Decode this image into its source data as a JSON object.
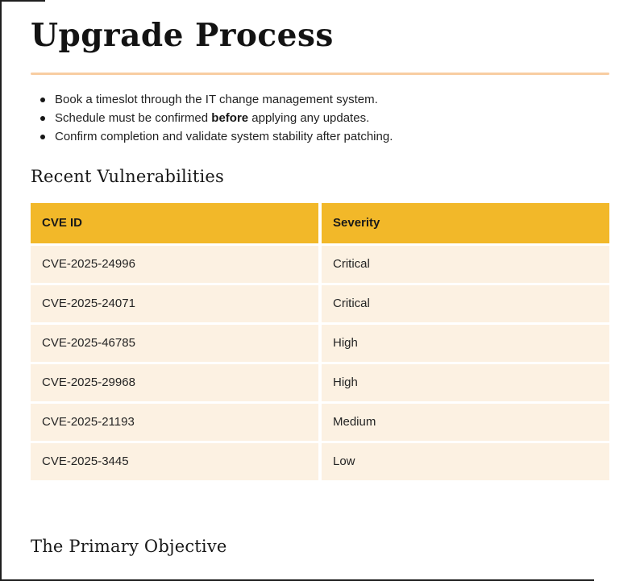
{
  "doc": {
    "title": "Upgrade Process",
    "intro_bullets": [
      {
        "pre": "Book a timeslot through the IT change management system.",
        "bold": "",
        "post": ""
      },
      {
        "pre": "Schedule must be confirmed ",
        "bold": "before",
        "post": " applying any updates."
      },
      {
        "pre": "Confirm completion and validate system stability after patching.",
        "bold": "",
        "post": ""
      }
    ],
    "section_heading": "Recent Vulnerabilities",
    "table": {
      "headers": [
        "CVE ID",
        "Severity"
      ],
      "rows": [
        [
          "CVE-2025-24996",
          "Critical"
        ],
        [
          "CVE-2025-24071",
          "Critical"
        ],
        [
          "CVE-2025-46785",
          "High"
        ],
        [
          "CVE-2025-29968",
          "High"
        ],
        [
          "CVE-2025-21193",
          "Medium"
        ],
        [
          "CVE-2025-3445",
          "Low"
        ]
      ]
    },
    "footer_heading": "The Primary Objective",
    "colors": {
      "table_header_bg": "#F2B829",
      "table_row_bg": "#FCF1E2",
      "divider": "#F8CDA2",
      "text": "#1B1B1B"
    }
  }
}
